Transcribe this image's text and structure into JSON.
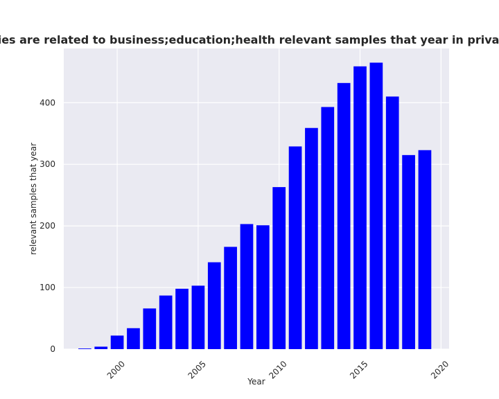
{
  "chart_data": {
    "type": "bar",
    "title": "Categories are related to business;education;health relevant samples that year in privacy policies",
    "xlabel": "Year",
    "ylabel": "relevant samples that year",
    "x": [
      1998,
      1999,
      2000,
      2001,
      2002,
      2003,
      2004,
      2005,
      2006,
      2007,
      2008,
      2009,
      2010,
      2011,
      2012,
      2013,
      2014,
      2015,
      2016,
      2017,
      2018,
      2019
    ],
    "values": [
      1,
      4,
      22,
      34,
      66,
      87,
      98,
      103,
      141,
      166,
      203,
      201,
      263,
      329,
      359,
      393,
      432,
      459,
      465,
      410,
      315,
      323
    ],
    "xticks": [
      "2000",
      "2005",
      "2010",
      "2015",
      "2020"
    ],
    "yticks": [
      "0",
      "100",
      "200",
      "300",
      "400"
    ],
    "xlim": [
      1996.7,
      2020.5
    ],
    "ylim": [
      0,
      488
    ],
    "bar_color": "#0000ff",
    "background_color": "#eaeaf2",
    "grid": true
  }
}
